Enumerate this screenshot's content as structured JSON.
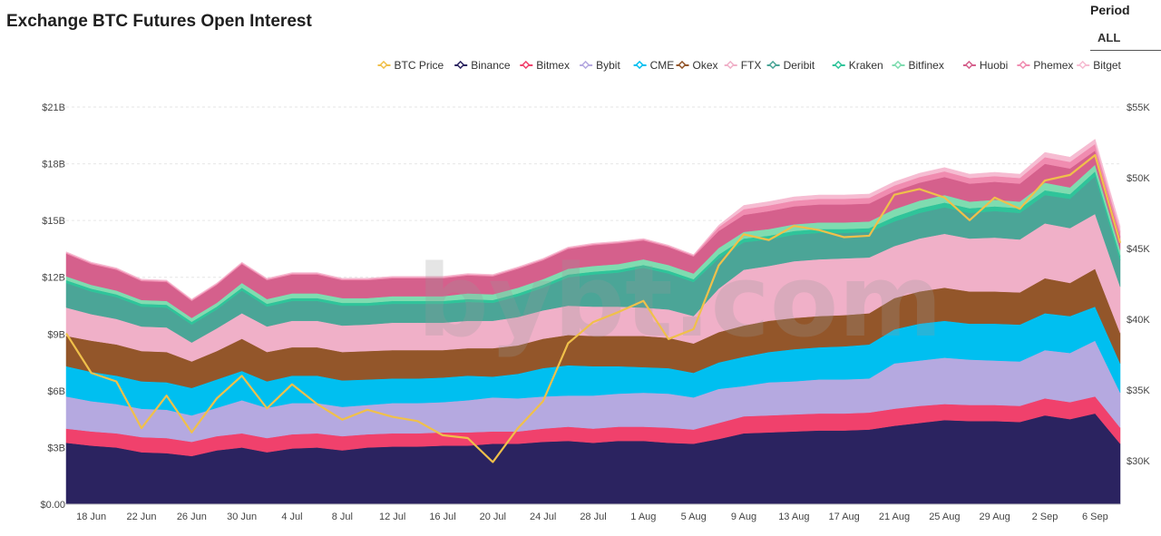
{
  "title": "Exchange BTC Futures Open Interest",
  "period": {
    "label": "Period",
    "value": "ALL"
  },
  "watermark": "bybt.com",
  "chart_data": {
    "type": "area",
    "stacked": true,
    "title": "Exchange BTC Futures Open Interest",
    "xlabel": "",
    "ylabel": "Open Interest (USD)",
    "y2label": "BTC Price (USD)",
    "ylim": [
      0,
      21
    ],
    "y2lim": [
      26.92,
      55
    ],
    "y_ticks": [
      {
        "v": 0,
        "label": "$0.00"
      },
      {
        "v": 3,
        "label": "$3B"
      },
      {
        "v": 6,
        "label": "$6B"
      },
      {
        "v": 9,
        "label": "$9B"
      },
      {
        "v": 12,
        "label": "$12B"
      },
      {
        "v": 15,
        "label": "$15B"
      },
      {
        "v": 18,
        "label": "$18B"
      },
      {
        "v": 21,
        "label": "$21B"
      }
    ],
    "y2_ticks": [
      {
        "v": 30,
        "label": "$30K"
      },
      {
        "v": 35,
        "label": "$35K"
      },
      {
        "v": 40,
        "label": "$40K"
      },
      {
        "v": 45,
        "label": "$45K"
      },
      {
        "v": 50,
        "label": "$50K"
      },
      {
        "v": 55,
        "label": "$55K"
      }
    ],
    "x": [
      "16 Jun",
      "18 Jun",
      "20 Jun",
      "22 Jun",
      "24 Jun",
      "26 Jun",
      "28 Jun",
      "30 Jun",
      "2 Jul",
      "4 Jul",
      "6 Jul",
      "8 Jul",
      "10 Jul",
      "12 Jul",
      "14 Jul",
      "16 Jul",
      "18 Jul",
      "20 Jul",
      "22 Jul",
      "24 Jul",
      "26 Jul",
      "28 Jul",
      "30 Jul",
      "1 Aug",
      "3 Aug",
      "5 Aug",
      "7 Aug",
      "9 Aug",
      "11 Aug",
      "13 Aug",
      "15 Aug",
      "17 Aug",
      "19 Aug",
      "21 Aug",
      "23 Aug",
      "25 Aug",
      "27 Aug",
      "29 Aug",
      "31 Aug",
      "2 Sep",
      "4 Sep",
      "6 Sep",
      "8 Sep"
    ],
    "x_tick_labels": [
      "18 Jun",
      "22 Jun",
      "26 Jun",
      "30 Jun",
      "4 Jul",
      "8 Jul",
      "12 Jul",
      "16 Jul",
      "20 Jul",
      "24 Jul",
      "28 Jul",
      "1 Aug",
      "5 Aug",
      "9 Aug",
      "13 Aug",
      "17 Aug",
      "21 Aug",
      "25 Aug",
      "29 Aug",
      "2 Sep",
      "6 Sep"
    ],
    "legend_position": "top-right",
    "units": "Open interest in $B; BTC price in $K",
    "line_series": {
      "name": "BTC Price",
      "color": "#f0c04a",
      "values": [
        39.0,
        36.2,
        35.6,
        32.3,
        34.6,
        32.0,
        34.4,
        36.0,
        33.7,
        35.4,
        34.0,
        32.9,
        33.6,
        33.1,
        32.8,
        31.8,
        31.6,
        29.9,
        32.3,
        34.2,
        38.3,
        39.8,
        40.5,
        41.3,
        38.6,
        39.3,
        43.8,
        46.0,
        45.6,
        46.6,
        46.3,
        45.8,
        45.9,
        48.8,
        49.2,
        48.6,
        47.0,
        48.6,
        47.8,
        49.8,
        50.2,
        51.6,
        45.4
      ]
    },
    "series": [
      {
        "name": "Binance",
        "color": "#2b2360",
        "values": [
          3.25,
          3.1,
          3.0,
          2.75,
          2.7,
          2.55,
          2.85,
          3.0,
          2.75,
          2.95,
          3.0,
          2.85,
          3.0,
          3.05,
          3.05,
          3.1,
          3.1,
          3.2,
          3.2,
          3.3,
          3.35,
          3.25,
          3.35,
          3.35,
          3.25,
          3.2,
          3.45,
          3.75,
          3.8,
          3.85,
          3.9,
          3.9,
          3.95,
          4.15,
          4.3,
          4.45,
          4.4,
          4.4,
          4.35,
          4.7,
          4.5,
          4.8,
          3.2
        ]
      },
      {
        "name": "Bitmex",
        "color": "#f0416c",
        "values": [
          0.75,
          0.75,
          0.75,
          0.8,
          0.8,
          0.75,
          0.75,
          0.75,
          0.75,
          0.75,
          0.75,
          0.75,
          0.7,
          0.7,
          0.7,
          0.7,
          0.7,
          0.65,
          0.65,
          0.7,
          0.75,
          0.75,
          0.75,
          0.75,
          0.8,
          0.75,
          0.85,
          0.9,
          0.9,
          0.9,
          0.9,
          0.9,
          0.9,
          0.9,
          0.9,
          0.85,
          0.85,
          0.85,
          0.85,
          0.9,
          0.9,
          0.9,
          0.85
        ]
      },
      {
        "name": "Bybit",
        "color": "#b5a9e0",
        "values": [
          1.7,
          1.6,
          1.55,
          1.5,
          1.5,
          1.4,
          1.5,
          1.75,
          1.6,
          1.65,
          1.6,
          1.55,
          1.55,
          1.6,
          1.6,
          1.6,
          1.7,
          1.8,
          1.75,
          1.7,
          1.65,
          1.75,
          1.75,
          1.8,
          1.8,
          1.7,
          1.8,
          1.6,
          1.75,
          1.75,
          1.8,
          1.8,
          1.8,
          2.4,
          2.4,
          2.45,
          2.4,
          2.35,
          2.35,
          2.55,
          2.6,
          2.95,
          1.85
        ]
      },
      {
        "name": "CME",
        "color": "#00bff0",
        "values": [
          1.6,
          1.55,
          1.5,
          1.45,
          1.45,
          1.45,
          1.5,
          1.55,
          1.4,
          1.45,
          1.45,
          1.4,
          1.35,
          1.3,
          1.3,
          1.3,
          1.3,
          1.1,
          1.3,
          1.5,
          1.6,
          1.55,
          1.45,
          1.35,
          1.35,
          1.3,
          1.4,
          1.55,
          1.6,
          1.7,
          1.7,
          1.75,
          1.8,
          1.8,
          1.95,
          1.95,
          1.9,
          1.95,
          1.95,
          1.95,
          1.95,
          1.8,
          1.55
        ]
      },
      {
        "name": "Okex",
        "color": "#93562a",
        "values": [
          1.6,
          1.65,
          1.65,
          1.6,
          1.6,
          1.4,
          1.5,
          1.7,
          1.55,
          1.5,
          1.5,
          1.5,
          1.5,
          1.5,
          1.5,
          1.45,
          1.45,
          1.5,
          1.5,
          1.55,
          1.6,
          1.6,
          1.6,
          1.65,
          1.6,
          1.55,
          1.6,
          1.65,
          1.65,
          1.65,
          1.65,
          1.65,
          1.65,
          1.65,
          1.7,
          1.75,
          1.7,
          1.7,
          1.7,
          1.85,
          1.75,
          2.0,
          1.6
        ]
      },
      {
        "name": "FTX",
        "color": "#f0b0c8",
        "values": [
          1.5,
          1.4,
          1.35,
          1.3,
          1.3,
          1.0,
          1.2,
          1.35,
          1.35,
          1.4,
          1.4,
          1.4,
          1.4,
          1.45,
          1.45,
          1.45,
          1.45,
          1.45,
          1.5,
          1.5,
          1.55,
          1.55,
          1.55,
          1.5,
          1.5,
          1.45,
          2.3,
          2.95,
          2.9,
          3.0,
          3.0,
          3.0,
          2.95,
          2.75,
          2.8,
          2.85,
          2.8,
          2.85,
          2.8,
          2.9,
          2.9,
          2.9,
          2.45
        ]
      },
      {
        "name": "Deribit",
        "color": "#4ba597",
        "values": [
          1.3,
          1.2,
          1.15,
          1.05,
          1.05,
          0.95,
          1.0,
          1.2,
          1.05,
          1.05,
          1.05,
          1.05,
          1.0,
          1.0,
          1.0,
          1.0,
          1.0,
          0.95,
          1.1,
          1.2,
          1.5,
          1.7,
          1.8,
          2.1,
          1.9,
          1.8,
          1.6,
          1.45,
          1.4,
          1.4,
          1.4,
          1.35,
          1.35,
          1.3,
          1.35,
          1.4,
          1.35,
          1.4,
          1.4,
          1.5,
          1.55,
          2.0,
          1.4
        ]
      },
      {
        "name": "Kraken",
        "color": "#2fc49a",
        "values": [
          0.15,
          0.15,
          0.15,
          0.15,
          0.15,
          0.15,
          0.15,
          0.15,
          0.15,
          0.15,
          0.15,
          0.15,
          0.15,
          0.15,
          0.15,
          0.15,
          0.15,
          0.15,
          0.15,
          0.15,
          0.15,
          0.15,
          0.15,
          0.15,
          0.15,
          0.15,
          0.2,
          0.2,
          0.2,
          0.2,
          0.2,
          0.2,
          0.2,
          0.25,
          0.25,
          0.25,
          0.25,
          0.25,
          0.25,
          0.25,
          0.25,
          0.25,
          0.25
        ]
      },
      {
        "name": "Bitfinex",
        "color": "#7fdcb0",
        "values": [
          0.2,
          0.2,
          0.2,
          0.2,
          0.2,
          0.2,
          0.2,
          0.25,
          0.25,
          0.25,
          0.25,
          0.25,
          0.25,
          0.25,
          0.25,
          0.25,
          0.3,
          0.3,
          0.3,
          0.3,
          0.3,
          0.3,
          0.3,
          0.3,
          0.3,
          0.3,
          0.35,
          0.35,
          0.35,
          0.35,
          0.35,
          0.35,
          0.35,
          0.4,
          0.4,
          0.4,
          0.35,
          0.35,
          0.35,
          0.4,
          0.35,
          0.35,
          0.3
        ]
      },
      {
        "name": "Huobi",
        "color": "#d5608c",
        "values": [
          1.2,
          1.1,
          1.1,
          1.0,
          1.0,
          0.9,
          0.95,
          1.0,
          1.0,
          1.0,
          1.0,
          0.95,
          0.95,
          0.95,
          0.95,
          0.95,
          0.95,
          0.95,
          1.0,
          1.0,
          1.05,
          1.1,
          1.1,
          1.0,
          0.95,
          0.9,
          0.9,
          0.9,
          0.95,
          0.95,
          0.95,
          0.95,
          0.95,
          0.95,
          0.95,
          0.95,
          0.95,
          0.95,
          0.95,
          1.0,
          1.0,
          0.75,
          0.7
        ]
      },
      {
        "name": "Phemex",
        "color": "#f08cb0",
        "values": [
          0.06,
          0.06,
          0.06,
          0.06,
          0.06,
          0.06,
          0.06,
          0.06,
          0.06,
          0.06,
          0.06,
          0.06,
          0.06,
          0.06,
          0.06,
          0.06,
          0.06,
          0.06,
          0.06,
          0.06,
          0.06,
          0.06,
          0.06,
          0.06,
          0.06,
          0.06,
          0.2,
          0.3,
          0.3,
          0.3,
          0.3,
          0.3,
          0.3,
          0.3,
          0.3,
          0.3,
          0.3,
          0.3,
          0.3,
          0.35,
          0.35,
          0.35,
          0.3
        ]
      },
      {
        "name": "Bitget",
        "color": "#f6bcd2",
        "values": [
          0.04,
          0.04,
          0.04,
          0.04,
          0.04,
          0.04,
          0.04,
          0.04,
          0.04,
          0.04,
          0.04,
          0.04,
          0.04,
          0.04,
          0.04,
          0.04,
          0.04,
          0.04,
          0.04,
          0.04,
          0.04,
          0.04,
          0.04,
          0.04,
          0.04,
          0.04,
          0.1,
          0.2,
          0.2,
          0.2,
          0.2,
          0.2,
          0.2,
          0.2,
          0.2,
          0.2,
          0.2,
          0.2,
          0.2,
          0.25,
          0.25,
          0.25,
          0.25
        ]
      }
    ]
  }
}
